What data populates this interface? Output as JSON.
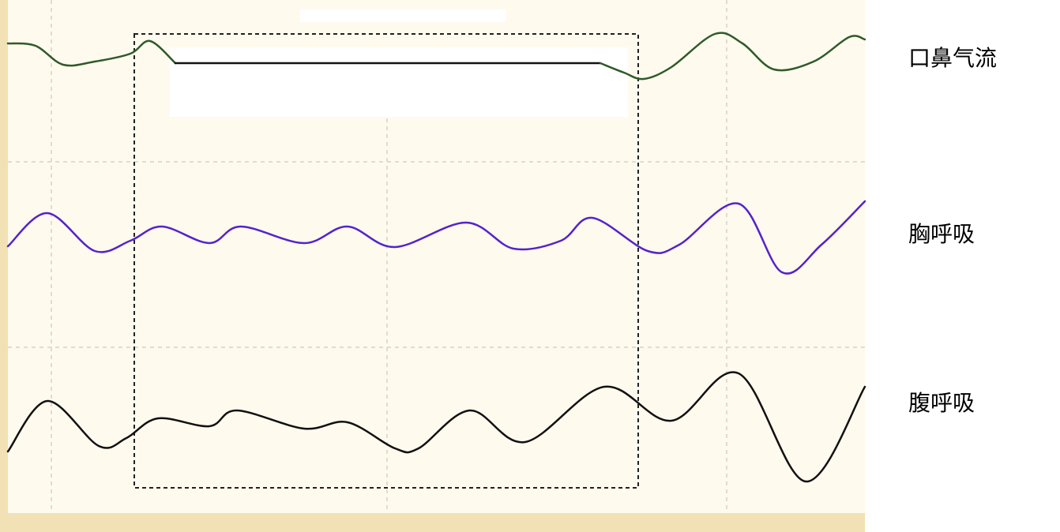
{
  "signals": [
    {
      "label": "口鼻气流"
    },
    {
      "label": "胸呼吸"
    },
    {
      "label": "腹呼吸"
    }
  ]
}
